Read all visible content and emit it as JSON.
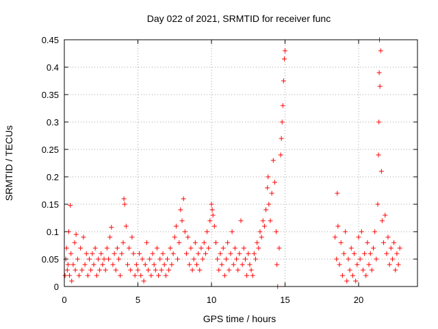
{
  "chart_data": {
    "type": "scatter",
    "title": "Day 022 of 2021, SRMTID for receiver func",
    "xlabel": "GPS time / hours",
    "ylabel": "SRMTID / TECUs",
    "xlim": [
      0,
      24
    ],
    "ylim": [
      0,
      0.45
    ],
    "xticks": [
      0,
      5,
      10,
      15,
      20
    ],
    "xtick_labels": [
      "0",
      "5",
      "10",
      "15",
      "20"
    ],
    "yticks": [
      0,
      0.05,
      0.1,
      0.15,
      0.2,
      0.25,
      0.3,
      0.35,
      0.4,
      0.45
    ],
    "ytick_labels": [
      "0",
      "0.05",
      "0.1",
      "0.15",
      "0.2",
      "0.25",
      "0.3",
      "0.35",
      "0.4",
      "0.45"
    ],
    "grid": true,
    "marker": "plus",
    "color": "#ff0000",
    "series": [
      {
        "points": [
          [
            0.05,
            0.02
          ],
          [
            0.1,
            0.05
          ],
          [
            0.15,
            0.07
          ],
          [
            0.2,
            0.03
          ],
          [
            0.25,
            0.04
          ],
          [
            0.3,
            0.1
          ],
          [
            0.35,
            0.02
          ],
          [
            0.4,
            0.148
          ],
          [
            0.45,
            0.06
          ],
          [
            0.5,
            0.01
          ],
          [
            0.6,
            0.04
          ],
          [
            0.7,
            0.08
          ],
          [
            0.75,
            0.03
          ],
          [
            0.8,
            0.095
          ],
          [
            0.9,
            0.05
          ],
          [
            1.0,
            0.02
          ],
          [
            1.1,
            0.07
          ],
          [
            1.2,
            0.03
          ],
          [
            1.3,
            0.09
          ],
          [
            1.4,
            0.04
          ],
          [
            1.5,
            0.06
          ],
          [
            1.6,
            0.02
          ],
          [
            1.7,
            0.05
          ],
          [
            1.8,
            0.03
          ],
          [
            1.9,
            0.06
          ],
          [
            2.0,
            0.04
          ],
          [
            2.1,
            0.07
          ],
          [
            2.2,
            0.02
          ],
          [
            2.3,
            0.05
          ],
          [
            2.4,
            0.03
          ],
          [
            2.5,
            0.06
          ],
          [
            2.6,
            0.04
          ],
          [
            2.7,
            0.05
          ],
          [
            2.8,
            0.03
          ],
          [
            2.9,
            0.07
          ],
          [
            3.0,
            0.05
          ],
          [
            3.1,
            0.09
          ],
          [
            3.2,
            0.108
          ],
          [
            3.3,
            0.04
          ],
          [
            3.4,
            0.06
          ],
          [
            3.5,
            0.03
          ],
          [
            3.6,
            0.07
          ],
          [
            3.7,
            0.05
          ],
          [
            3.8,
            0.02
          ],
          [
            3.9,
            0.06
          ],
          [
            4.0,
            0.08
          ],
          [
            4.05,
            0.16
          ],
          [
            4.1,
            0.15
          ],
          [
            4.2,
            0.11
          ],
          [
            4.3,
            0.04
          ],
          [
            4.4,
            0.07
          ],
          [
            4.5,
            0.03
          ],
          [
            4.6,
            0.09
          ],
          [
            4.7,
            0.06
          ],
          [
            4.8,
            0.02
          ],
          [
            4.9,
            0.04
          ],
          [
            5.0,
            0.03
          ],
          [
            5.1,
            0.06
          ],
          [
            5.2,
            0.02
          ],
          [
            5.3,
            0.05
          ],
          [
            5.4,
            0.01
          ],
          [
            5.5,
            0.04
          ],
          [
            5.6,
            0.08
          ],
          [
            5.7,
            0.03
          ],
          [
            5.8,
            0.05
          ],
          [
            5.9,
            0.02
          ],
          [
            6.0,
            0.06
          ],
          [
            6.1,
            0.04
          ],
          [
            6.2,
            0.03
          ],
          [
            6.3,
            0.07
          ],
          [
            6.4,
            0.02
          ],
          [
            6.5,
            0.05
          ],
          [
            6.6,
            0.03
          ],
          [
            6.7,
            0.06
          ],
          [
            6.8,
            0.04
          ],
          [
            6.9,
            0.02
          ],
          [
            7.0,
            0.05
          ],
          [
            7.1,
            0.03
          ],
          [
            7.2,
            0.07
          ],
          [
            7.3,
            0.04
          ],
          [
            7.4,
            0.06
          ],
          [
            7.5,
            0.09
          ],
          [
            7.6,
            0.11
          ],
          [
            7.7,
            0.05
          ],
          [
            7.8,
            0.08
          ],
          [
            7.9,
            0.14
          ],
          [
            8.0,
            0.12
          ],
          [
            8.1,
            0.16
          ],
          [
            8.2,
            0.1
          ],
          [
            8.3,
            0.06
          ],
          [
            8.4,
            0.09
          ],
          [
            8.5,
            0.04
          ],
          [
            8.6,
            0.07
          ],
          [
            8.7,
            0.03
          ],
          [
            8.8,
            0.05
          ],
          [
            8.9,
            0.08
          ],
          [
            9.0,
            0.04
          ],
          [
            9.1,
            0.06
          ],
          [
            9.2,
            0.03
          ],
          [
            9.3,
            0.07
          ],
          [
            9.4,
            0.05
          ],
          [
            9.5,
            0.08
          ],
          [
            9.6,
            0.06
          ],
          [
            9.7,
            0.1
          ],
          [
            9.8,
            0.07
          ],
          [
            9.9,
            0.12
          ],
          [
            10.0,
            0.15
          ],
          [
            10.05,
            0.14
          ],
          [
            10.1,
            0.13
          ],
          [
            10.2,
            0.11
          ],
          [
            10.3,
            0.08
          ],
          [
            10.4,
            0.05
          ],
          [
            10.5,
            0.03
          ],
          [
            10.6,
            0.06
          ],
          [
            10.7,
            0.04
          ],
          [
            10.8,
            0.07
          ],
          [
            10.9,
            0.02
          ],
          [
            11.0,
            0.05
          ],
          [
            11.1,
            0.08
          ],
          [
            11.2,
            0.03
          ],
          [
            11.3,
            0.06
          ],
          [
            11.4,
            0.1
          ],
          [
            11.5,
            0.04
          ],
          [
            11.6,
            0.07
          ],
          [
            11.7,
            0.05
          ],
          [
            11.8,
            0.03
          ],
          [
            11.9,
            0.06
          ],
          [
            12.0,
            0.12
          ],
          [
            12.1,
            0.04
          ],
          [
            12.2,
            0.07
          ],
          [
            12.3,
            0.05
          ],
          [
            12.4,
            0.02
          ],
          [
            12.5,
            0.06
          ],
          [
            12.6,
            0.04
          ],
          [
            12.7,
            0.03
          ],
          [
            12.8,
            0.02
          ],
          [
            12.9,
            0.06
          ],
          [
            13.0,
            0.05
          ],
          [
            13.1,
            0.08
          ],
          [
            13.2,
            0.07
          ],
          [
            13.3,
            0.1
          ],
          [
            13.4,
            0.09
          ],
          [
            13.5,
            0.12
          ],
          [
            13.6,
            0.11
          ],
          [
            13.7,
            0.14
          ],
          [
            13.8,
            0.18
          ],
          [
            13.85,
            0.2
          ],
          [
            13.9,
            0.15
          ],
          [
            14.0,
            0.12
          ],
          [
            14.1,
            0.17
          ],
          [
            14.2,
            0.23
          ],
          [
            14.3,
            0.19
          ],
          [
            14.4,
            0.1
          ],
          [
            14.45,
            0.04
          ],
          [
            14.5,
            0.0
          ],
          [
            14.6,
            0.07
          ],
          [
            14.7,
            0.24
          ],
          [
            14.75,
            0.27
          ],
          [
            14.8,
            0.3
          ],
          [
            14.85,
            0.33
          ],
          [
            14.9,
            0.375
          ],
          [
            14.95,
            0.415
          ],
          [
            15.0,
            0.43
          ],
          [
            18.4,
            0.09
          ],
          [
            18.5,
            0.05
          ],
          [
            18.55,
            0.17
          ],
          [
            18.6,
            0.11
          ],
          [
            18.7,
            0.04
          ],
          [
            18.8,
            0.08
          ],
          [
            18.9,
            0.02
          ],
          [
            19.0,
            0.06
          ],
          [
            19.1,
            0.1
          ],
          [
            19.2,
            0.01
          ],
          [
            19.3,
            0.05
          ],
          [
            19.4,
            0.03
          ],
          [
            19.5,
            0.07
          ],
          [
            19.6,
            0.02
          ],
          [
            19.7,
            0.06
          ],
          [
            19.8,
            0.01
          ],
          [
            19.9,
            0.04
          ],
          [
            20.0,
            0.09
          ],
          [
            20.1,
            0.05
          ],
          [
            20.2,
            0.1
          ],
          [
            20.3,
            0.03
          ],
          [
            20.4,
            0.06
          ],
          [
            20.5,
            0.02
          ],
          [
            20.6,
            0.08
          ],
          [
            20.7,
            0.04
          ],
          [
            20.8,
            0.06
          ],
          [
            20.9,
            0.03
          ],
          [
            21.0,
            0.07
          ],
          [
            21.1,
            0.1
          ],
          [
            21.2,
            0.05
          ],
          [
            21.3,
            0.15
          ],
          [
            21.35,
            0.24
          ],
          [
            21.38,
            0.3
          ],
          [
            21.4,
            0.39
          ],
          [
            21.42,
            0.45
          ],
          [
            21.45,
            0.365
          ],
          [
            21.5,
            0.43
          ],
          [
            21.55,
            0.21
          ],
          [
            21.6,
            0.12
          ],
          [
            21.7,
            0.08
          ],
          [
            21.8,
            0.13
          ],
          [
            21.9,
            0.06
          ],
          [
            22.0,
            0.09
          ],
          [
            22.1,
            0.04
          ],
          [
            22.2,
            0.07
          ],
          [
            22.3,
            0.05
          ],
          [
            22.4,
            0.08
          ],
          [
            22.5,
            0.03
          ],
          [
            22.6,
            0.06
          ],
          [
            22.7,
            0.04
          ],
          [
            22.8,
            0.07
          ]
        ]
      }
    ]
  }
}
